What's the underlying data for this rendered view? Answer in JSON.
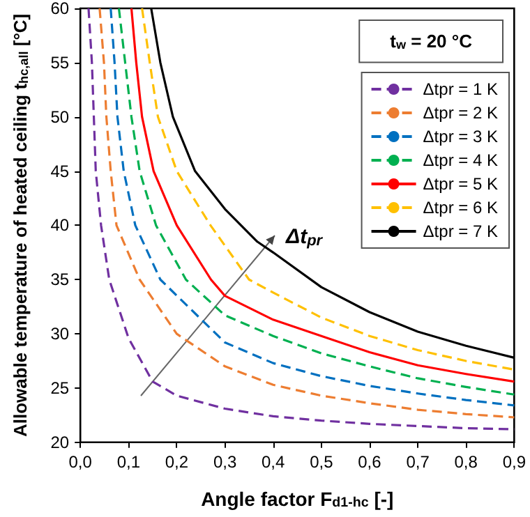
{
  "chart_data": {
    "type": "line",
    "xlabel": "Angle factor F$_{d1-hc}$ [-]",
    "ylabel": "Allowable temperature of heated ceiling t$_{hc,all}$ [°C]",
    "xlim": [
      0,
      0.9
    ],
    "xticks": [
      {
        "value": 0,
        "label": "0,0"
      },
      {
        "value": 0.1,
        "label": "0,1"
      },
      {
        "value": 0.2,
        "label": "0,2"
      },
      {
        "value": 0.3,
        "label": "0,3"
      },
      {
        "value": 0.4,
        "label": "0,4"
      },
      {
        "value": 0.5,
        "label": "0,5"
      },
      {
        "value": 0.6,
        "label": "0,6"
      },
      {
        "value": 0.7,
        "label": "0,7"
      },
      {
        "value": 0.8,
        "label": "0,8"
      },
      {
        "value": 0.9,
        "label": "0,9"
      }
    ],
    "ylim": [
      20,
      60
    ],
    "yticks": [
      20,
      25,
      30,
      35,
      40,
      45,
      50,
      55,
      60
    ],
    "grid": false,
    "legend": "top right",
    "marker": "none",
    "annotations": [
      "t$_{w}$ = 20 °C",
      "Δt$_{pr}$"
    ],
    "series": [
      {
        "name": "Δtpr = 1 K",
        "color": "#7030a0",
        "line_style": "dashed",
        "x": [
          0.017,
          0.024,
          0.028,
          0.032,
          0.043,
          0.06,
          0.1,
          0.15,
          0.2,
          0.3,
          0.4,
          0.5,
          0.6,
          0.7,
          0.8,
          0.9
        ],
        "values": [
          60,
          55,
          50,
          45,
          40,
          35,
          29.6,
          25.6,
          24.3,
          23.1,
          22.4,
          22.0,
          21.7,
          21.5,
          21.3,
          21.2
        ]
      },
      {
        "name": "Δtpr = 2 K",
        "color": "#ed7d31",
        "line_style": "dashed",
        "x": [
          0.04,
          0.049,
          0.054,
          0.063,
          0.075,
          0.123,
          0.2,
          0.3,
          0.4,
          0.5,
          0.6,
          0.7,
          0.8,
          0.9
        ],
        "values": [
          60,
          55,
          50,
          45,
          40,
          35,
          30,
          27.0,
          25.3,
          24.3,
          23.6,
          23.0,
          22.6,
          22.3
        ]
      },
      {
        "name": "Δtpr = 3 K",
        "color": "#0070c0",
        "line_style": "dashed",
        "x": [
          0.063,
          0.071,
          0.077,
          0.09,
          0.114,
          0.166,
          0.3,
          0.4,
          0.5,
          0.6,
          0.7,
          0.8,
          0.9
        ],
        "values": [
          60,
          55,
          50,
          45,
          40,
          35,
          29.2,
          27.3,
          26.1,
          25.2,
          24.5,
          23.9,
          23.4
        ]
      },
      {
        "name": "Δtpr = 4 K",
        "color": "#00b050",
        "line_style": "dashed",
        "x": [
          0.08,
          0.093,
          0.106,
          0.123,
          0.157,
          0.219,
          0.3,
          0.4,
          0.5,
          0.6,
          0.7,
          0.8,
          0.9
        ],
        "values": [
          60,
          55,
          50,
          45,
          40,
          35,
          31.7,
          29.8,
          28.2,
          27.0,
          25.9,
          25.1,
          24.4
        ]
      },
      {
        "name": "Δtpr = 5 K",
        "color": "#ff0000",
        "line_style": "solid",
        "x": [
          0.106,
          0.116,
          0.128,
          0.152,
          0.2,
          0.271,
          0.3,
          0.4,
          0.5,
          0.6,
          0.7,
          0.8,
          0.9
        ],
        "values": [
          60,
          55,
          50,
          45,
          40,
          35,
          33.5,
          31.3,
          29.8,
          28.3,
          27.1,
          26.3,
          25.6
        ]
      },
      {
        "name": "Δtpr = 6 K",
        "color": "#ffc000",
        "line_style": "dashed",
        "x": [
          0.128,
          0.144,
          0.161,
          0.2,
          0.27,
          0.35,
          0.4,
          0.5,
          0.6,
          0.7,
          0.8,
          0.9
        ],
        "values": [
          60,
          55,
          50,
          45,
          40,
          35,
          33.8,
          31.5,
          29.8,
          28.5,
          27.5,
          26.7
        ]
      },
      {
        "name": "Δtpr = 7 K",
        "color": "#000000",
        "line_style": "solid",
        "x": [
          0.147,
          0.166,
          0.192,
          0.238,
          0.3,
          0.367,
          0.4,
          0.5,
          0.6,
          0.7,
          0.8,
          0.9
        ],
        "values": [
          60,
          55,
          50,
          45,
          41.5,
          38.5,
          37.5,
          34.3,
          32.0,
          30.2,
          28.9,
          27.8
        ]
      }
    ]
  }
}
